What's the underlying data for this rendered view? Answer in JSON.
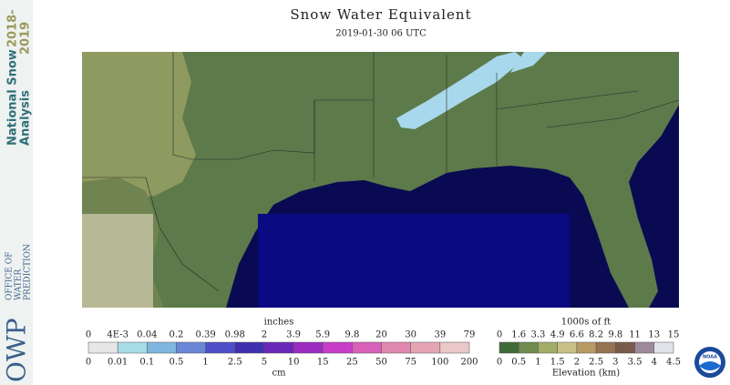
{
  "header": {
    "title": "Snow Water Equivalent",
    "subtitle": "2019-01-30 06 UTC"
  },
  "sidebar": {
    "line1": "National Snow",
    "line1_years": "2018-",
    "line2": "Analysis",
    "line2_years": "2019"
  },
  "logo": {
    "acronym": "OWP",
    "line1": "OFFICE OF",
    "line2": "WATER",
    "line3": "PREDICTION"
  },
  "snow_legend": {
    "unit_top": "inches",
    "top_labels": [
      "0",
      "4E-3",
      "0.04",
      "0.2",
      "0.39",
      "0.98",
      "2",
      "3.9",
      "5.9",
      "9.8",
      "20",
      "30",
      "39",
      "79"
    ],
    "bottom_labels": [
      "0",
      "0.01",
      "0.1",
      "0.5",
      "1",
      "2.5",
      "5",
      "10",
      "15",
      "25",
      "50",
      "75",
      "100",
      "200"
    ],
    "unit_bottom": "cm",
    "colors": [
      "#e6e6e6",
      "#a6dce6",
      "#7eb6e0",
      "#6a86d6",
      "#4e4ec8",
      "#4030b0",
      "#6a28b8",
      "#9a2cc0",
      "#c83cc8",
      "#d860b8",
      "#e088b0",
      "#e4a4b4",
      "#eac8c8"
    ]
  },
  "elevation_legend": {
    "unit_top": "1000s of ft",
    "top_labels": [
      "0",
      "1.6",
      "3.3",
      "4.9",
      "6.6",
      "8.2",
      "9.8",
      "11",
      "13",
      "15"
    ],
    "bottom_labels": [
      "0",
      "0.5",
      "1",
      "1.5",
      "2",
      "2.5",
      "3",
      "3.5",
      "4",
      "4.5"
    ],
    "axis_label": "Elevation (km)",
    "colors": [
      "#3f6a3a",
      "#6e8c4e",
      "#a4ac6a",
      "#c8c088",
      "#b89a64",
      "#967350",
      "#7a5a48",
      "#9c8a9a",
      "#e2e2ea"
    ]
  },
  "noaa": {
    "label": "NOAA"
  }
}
